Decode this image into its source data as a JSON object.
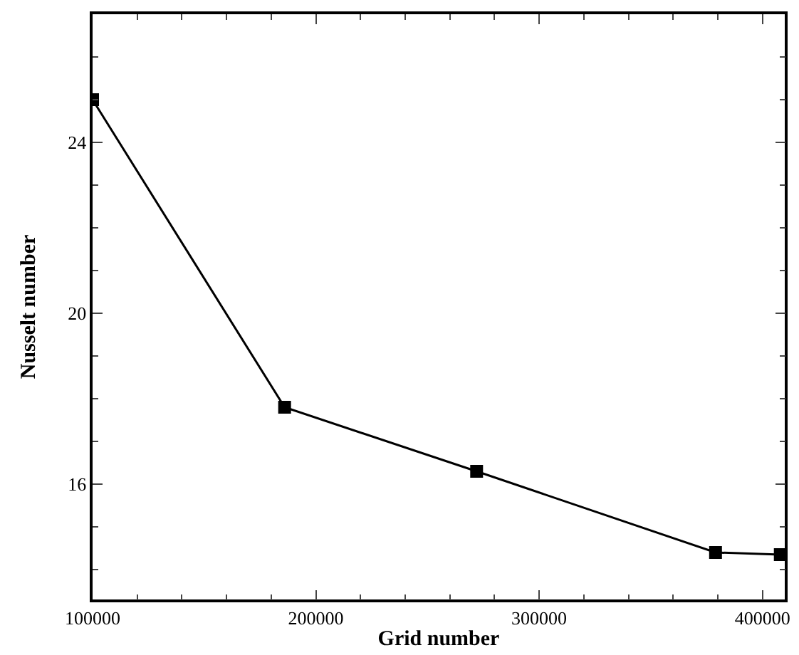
{
  "chart_data": {
    "type": "line",
    "xlabel": "Grid number",
    "ylabel": "Nusselt number",
    "x": [
      100000,
      186000,
      272000,
      379000,
      408000
    ],
    "series": [
      {
        "color": "#000000",
        "values": [
          25.0,
          17.8,
          16.3,
          14.4,
          14.35
        ]
      }
    ],
    "xlim": [
      100000,
      410000
    ],
    "xticks": [
      100000,
      200000,
      300000,
      400000
    ],
    "ylim": [
      13.3,
      27.0
    ],
    "yticks": [
      16,
      20,
      24
    ],
    "grid": false,
    "legend": false,
    "marker": "square",
    "line_style": "solid"
  }
}
